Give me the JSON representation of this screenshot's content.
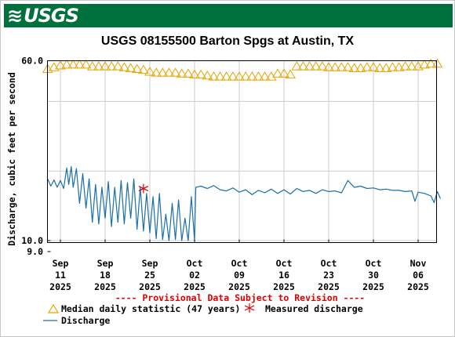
{
  "header": {
    "agency_logo_text": "USGS"
  },
  "title": "USGS 08155500 Barton Spgs at Austin, TX",
  "chart_data": {
    "type": "line",
    "title": "USGS 08155500 Barton Spgs at Austin, TX",
    "ylabel": "Discharge, cubic feet per second",
    "y_scale": "log",
    "ylim": [
      9.0,
      60.0
    ],
    "yticks": [
      {
        "value": 60.0,
        "label": "60.0"
      },
      {
        "value": 10.0,
        "label": "10.0"
      },
      {
        "value": 9.0,
        "label": "9.0"
      }
    ],
    "xlim": [
      "2025-09-09",
      "2025-11-10"
    ],
    "xticks": [
      {
        "date": "2025-09-11",
        "label": [
          "Sep",
          "11",
          "2025"
        ]
      },
      {
        "date": "2025-09-18",
        "label": [
          "Sep",
          "18",
          "2025"
        ]
      },
      {
        "date": "2025-09-25",
        "label": [
          "Sep",
          "25",
          "2025"
        ]
      },
      {
        "date": "2025-10-02",
        "label": [
          "Oct",
          "02",
          "2025"
        ]
      },
      {
        "date": "2025-10-09",
        "label": [
          "Oct",
          "09",
          "2025"
        ]
      },
      {
        "date": "2025-10-16",
        "label": [
          "Oct",
          "16",
          "2025"
        ]
      },
      {
        "date": "2025-10-23",
        "label": [
          "Oct",
          "23",
          "2025"
        ]
      },
      {
        "date": "2025-10-30",
        "label": [
          "Oct",
          "30",
          "2025"
        ]
      },
      {
        "date": "2025-11-06",
        "label": [
          "Nov",
          "06",
          "2025"
        ]
      }
    ],
    "grid": true,
    "provisional_note": "---- Provisional Data Subject to Revision ----",
    "series": [
      {
        "name": "Median daily statistic (47 years)",
        "marker": "triangle",
        "color": "#e8a400",
        "points": [
          [
            "2025-09-09",
            55.5
          ],
          [
            "2025-09-10",
            56.5
          ],
          [
            "2025-09-11",
            57.5
          ],
          [
            "2025-09-12",
            58.0
          ],
          [
            "2025-09-13",
            58.0
          ],
          [
            "2025-09-14",
            58.0
          ],
          [
            "2025-09-15",
            58.0
          ],
          [
            "2025-09-16",
            57.0
          ],
          [
            "2025-09-17",
            57.0
          ],
          [
            "2025-09-18",
            57.0
          ],
          [
            "2025-09-19",
            57.0
          ],
          [
            "2025-09-20",
            57.0
          ],
          [
            "2025-09-21",
            56.5
          ],
          [
            "2025-09-22",
            56.0
          ],
          [
            "2025-09-23",
            55.5
          ],
          [
            "2025-09-24",
            55.0
          ],
          [
            "2025-09-25",
            54.0
          ],
          [
            "2025-09-26",
            53.5
          ],
          [
            "2025-09-27",
            53.5
          ],
          [
            "2025-09-28",
            53.5
          ],
          [
            "2025-09-29",
            53.5
          ],
          [
            "2025-09-30",
            53.0
          ],
          [
            "2025-10-01",
            53.0
          ],
          [
            "2025-10-02",
            52.5
          ],
          [
            "2025-10-03",
            52.5
          ],
          [
            "2025-10-04",
            52.0
          ],
          [
            "2025-10-05",
            51.5
          ],
          [
            "2025-10-06",
            51.5
          ],
          [
            "2025-10-07",
            51.5
          ],
          [
            "2025-10-08",
            51.5
          ],
          [
            "2025-10-09",
            51.5
          ],
          [
            "2025-10-10",
            51.5
          ],
          [
            "2025-10-11",
            51.5
          ],
          [
            "2025-10-12",
            51.5
          ],
          [
            "2025-10-13",
            51.5
          ],
          [
            "2025-10-14",
            51.5
          ],
          [
            "2025-10-15",
            53.0
          ],
          [
            "2025-10-16",
            53.0
          ],
          [
            "2025-10-17",
            52.5
          ],
          [
            "2025-10-18",
            57.0
          ],
          [
            "2025-10-19",
            57.0
          ],
          [
            "2025-10-20",
            57.0
          ],
          [
            "2025-10-21",
            57.0
          ],
          [
            "2025-10-22",
            57.0
          ],
          [
            "2025-10-23",
            56.5
          ],
          [
            "2025-10-24",
            56.5
          ],
          [
            "2025-10-25",
            56.5
          ],
          [
            "2025-10-26",
            56.5
          ],
          [
            "2025-10-27",
            56.0
          ],
          [
            "2025-10-28",
            56.0
          ],
          [
            "2025-10-29",
            56.5
          ],
          [
            "2025-10-30",
            56.5
          ],
          [
            "2025-10-31",
            56.0
          ],
          [
            "2025-11-01",
            56.0
          ],
          [
            "2025-11-02",
            56.5
          ],
          [
            "2025-11-03",
            56.5
          ],
          [
            "2025-11-04",
            57.0
          ],
          [
            "2025-11-05",
            57.0
          ],
          [
            "2025-11-06",
            57.0
          ],
          [
            "2025-11-07",
            58.0
          ],
          [
            "2025-11-08",
            58.5
          ],
          [
            "2025-11-09",
            58.5
          ],
          [
            "2025-11-10",
            58.0
          ]
        ]
      },
      {
        "name": "Measured discharge",
        "marker": "asterisk",
        "color": "#e00000",
        "points": [
          [
            "2025-09-24",
            16.8
          ]
        ]
      },
      {
        "name": "Discharge",
        "marker": "line",
        "color": "#1a6fa8",
        "points": [
          [
            "2025-09-09",
            18.5
          ],
          [
            "2025-09-09.5",
            17.2
          ],
          [
            "2025-09-10",
            18.3
          ],
          [
            "2025-09-10.5",
            17.0
          ],
          [
            "2025-09-11",
            18.2
          ],
          [
            "2025-09-11.5",
            16.8
          ],
          [
            "2025-09-12",
            20.6
          ],
          [
            "2025-09-12.3",
            17.5
          ],
          [
            "2025-09-12.7",
            20.9
          ],
          [
            "2025-09-13",
            17.0
          ],
          [
            "2025-09-13.5",
            20.5
          ],
          [
            "2025-09-14",
            14.5
          ],
          [
            "2025-09-14.5",
            19.5
          ],
          [
            "2025-09-15",
            13.8
          ],
          [
            "2025-09-15.5",
            18.5
          ],
          [
            "2025-09-16",
            12.0
          ],
          [
            "2025-09-16.5",
            17.5
          ],
          [
            "2025-09-17",
            11.8
          ],
          [
            "2025-09-17.5",
            17.0
          ],
          [
            "2025-09-18",
            12.5
          ],
          [
            "2025-09-18.5",
            18.0
          ],
          [
            "2025-09-19",
            11.5
          ],
          [
            "2025-09-19.5",
            17.0
          ],
          [
            "2025-09-20",
            12.0
          ],
          [
            "2025-09-20.5",
            18.2
          ],
          [
            "2025-09-21",
            11.8
          ],
          [
            "2025-09-21.5",
            17.8
          ],
          [
            "2025-09-22",
            12.5
          ],
          [
            "2025-09-22.5",
            18.5
          ],
          [
            "2025-09-23",
            11.2
          ],
          [
            "2025-09-23.5",
            17.0
          ],
          [
            "2025-09-24",
            11.0
          ],
          [
            "2025-09-24.5",
            16.0
          ],
          [
            "2025-09-25",
            10.8
          ],
          [
            "2025-09-25.5",
            15.5
          ],
          [
            "2025-09-26",
            10.2
          ],
          [
            "2025-09-26.5",
            16.0
          ],
          [
            "2025-09-27",
            10.1
          ],
          [
            "2025-09-27.5",
            13.0
          ],
          [
            "2025-09-28",
            10.0
          ],
          [
            "2025-09-28.5",
            14.5
          ],
          [
            "2025-09-29",
            10.1
          ],
          [
            "2025-09-29.5",
            15.0
          ],
          [
            "2025-09-30",
            10.0
          ],
          [
            "2025-09-30.5",
            12.5
          ],
          [
            "2025-10-01",
            10.0
          ],
          [
            "2025-10-01.5",
            15.5
          ],
          [
            "2025-10-02",
            10.0
          ],
          [
            "2025-10-02.2",
            17.0
          ],
          [
            "2025-10-03",
            17.2
          ],
          [
            "2025-10-04",
            16.8
          ],
          [
            "2025-10-05",
            17.3
          ],
          [
            "2025-10-06",
            16.6
          ],
          [
            "2025-10-07",
            16.4
          ],
          [
            "2025-10-08",
            16.9
          ],
          [
            "2025-10-09",
            16.2
          ],
          [
            "2025-10-10",
            16.6
          ],
          [
            "2025-10-11",
            15.8
          ],
          [
            "2025-10-12",
            16.5
          ],
          [
            "2025-10-13",
            16.1
          ],
          [
            "2025-10-14",
            16.7
          ],
          [
            "2025-10-15",
            16.0
          ],
          [
            "2025-10-16",
            16.6
          ],
          [
            "2025-10-17",
            15.9
          ],
          [
            "2025-10-18",
            16.8
          ],
          [
            "2025-10-19",
            16.3
          ],
          [
            "2025-10-20",
            16.5
          ],
          [
            "2025-10-21",
            16.0
          ],
          [
            "2025-10-22",
            16.6
          ],
          [
            "2025-10-23",
            16.3
          ],
          [
            "2025-10-24",
            16.4
          ],
          [
            "2025-10-25",
            16.1
          ],
          [
            "2025-10-26",
            18.2
          ],
          [
            "2025-10-27",
            17.0
          ],
          [
            "2025-10-28",
            17.2
          ],
          [
            "2025-10-29",
            16.8
          ],
          [
            "2025-10-30",
            16.9
          ],
          [
            "2025-10-31",
            16.6
          ],
          [
            "2025-11-01",
            16.7
          ],
          [
            "2025-11-02",
            16.5
          ],
          [
            "2025-11-03",
            16.5
          ],
          [
            "2025-11-04",
            16.3
          ],
          [
            "2025-11-05",
            16.4
          ],
          [
            "2025-11-05.5",
            14.8
          ],
          [
            "2025-11-06",
            16.2
          ],
          [
            "2025-11-07",
            16.0
          ],
          [
            "2025-11-08",
            15.6
          ],
          [
            "2025-11-08.5",
            14.6
          ],
          [
            "2025-11-09",
            16.3
          ],
          [
            "2025-11-09.5",
            15.2
          ]
        ]
      }
    ]
  }
}
